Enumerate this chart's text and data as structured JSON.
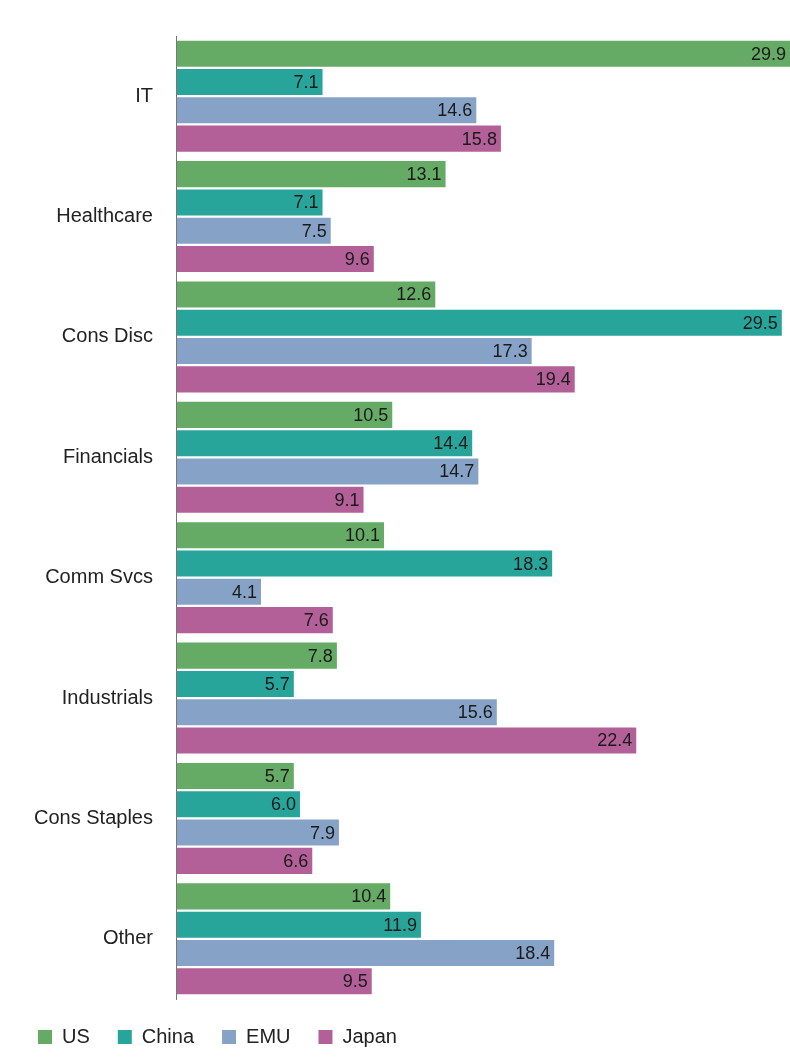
{
  "chart_data": {
    "type": "bar",
    "orientation": "horizontal",
    "categories": [
      "IT",
      "Healthcare",
      "Cons Disc",
      "Financials",
      "Comm Svcs",
      "Industrials",
      "Cons Staples",
      "Other"
    ],
    "series": [
      {
        "name": "US",
        "color": "#65ab65",
        "values": [
          29.9,
          13.1,
          12.6,
          10.5,
          10.1,
          7.8,
          5.7,
          10.4
        ],
        "value_labels": [
          "29.9",
          "13.1",
          "12.6",
          "10.5",
          "10.1",
          "7.8",
          "5.7",
          "10.4"
        ]
      },
      {
        "name": "China",
        "color": "#27a59b",
        "values": [
          7.1,
          7.1,
          29.5,
          14.4,
          18.3,
          5.7,
          6.0,
          11.9
        ],
        "value_labels": [
          "7.1",
          "7.1",
          "29.5",
          "14.4",
          "18.3",
          "5.7",
          "6.0",
          "11.9"
        ]
      },
      {
        "name": "EMU",
        "color": "#86a3c7",
        "values": [
          14.6,
          7.5,
          17.3,
          14.7,
          4.1,
          15.6,
          7.9,
          18.4
        ],
        "value_labels": [
          "14.6",
          "7.5",
          "17.3",
          "14.7",
          "4.1",
          "15.6",
          "7.9",
          "18.4"
        ]
      },
      {
        "name": "Japan",
        "color": "#b36098",
        "values": [
          15.8,
          9.6,
          19.4,
          9.1,
          7.6,
          22.4,
          6.6,
          9.5
        ],
        "value_labels": [
          "15.8",
          "9.6",
          "19.4",
          "9.1",
          "7.6",
          "22.4",
          "6.6",
          "9.5"
        ]
      }
    ],
    "legend": "bottom",
    "grid": false
  }
}
